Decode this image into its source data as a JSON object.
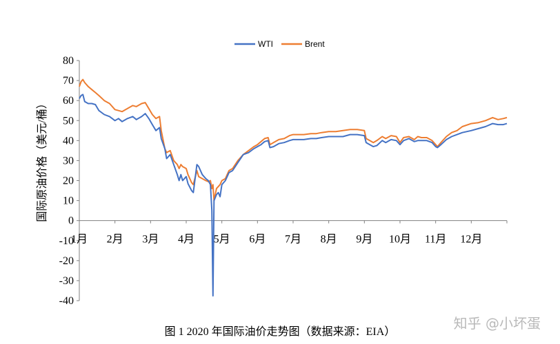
{
  "chart_data": {
    "type": "line",
    "caption": "图 1 2020 年国际油价走势图（数据来源：EIA）",
    "ylabel": "国际原油价格（美元/桶）",
    "xlabel": "",
    "ylim": [
      -40,
      80
    ],
    "yticks": [
      80,
      70,
      60,
      50,
      40,
      30,
      20,
      10,
      0,
      -10,
      -20,
      -30,
      -40
    ],
    "xrange": [
      1,
      13
    ],
    "months": [
      {
        "label": "1月",
        "x": 1
      },
      {
        "label": "2月",
        "x": 2
      },
      {
        "label": "3月",
        "x": 3
      },
      {
        "label": "4月",
        "x": 4
      },
      {
        "label": "5月",
        "x": 5
      },
      {
        "label": "6月",
        "x": 6
      },
      {
        "label": "7月",
        "x": 7
      },
      {
        "label": "8月",
        "x": 8
      },
      {
        "label": "9月",
        "x": 9
      },
      {
        "label": "10月",
        "x": 10
      },
      {
        "label": "11月",
        "x": 11
      },
      {
        "label": "12月",
        "x": 12
      }
    ],
    "legend_position": "top-center",
    "grid": false,
    "series": [
      {
        "name": "WTI",
        "color": "#4472C4",
        "points": [
          [
            1.0,
            61
          ],
          [
            1.05,
            62.5
          ],
          [
            1.1,
            63
          ],
          [
            1.15,
            59.5
          ],
          [
            1.25,
            58.5
          ],
          [
            1.35,
            58.5
          ],
          [
            1.45,
            58
          ],
          [
            1.55,
            55
          ],
          [
            1.7,
            53
          ],
          [
            1.85,
            52
          ],
          [
            2.0,
            50
          ],
          [
            2.1,
            51
          ],
          [
            2.2,
            49.5
          ],
          [
            2.35,
            51
          ],
          [
            2.5,
            52
          ],
          [
            2.6,
            50.5
          ],
          [
            2.75,
            52
          ],
          [
            2.85,
            53.5
          ],
          [
            2.95,
            51
          ],
          [
            3.05,
            48
          ],
          [
            3.15,
            45
          ],
          [
            3.25,
            46.5
          ],
          [
            3.3,
            41
          ],
          [
            3.4,
            36
          ],
          [
            3.45,
            31
          ],
          [
            3.55,
            33
          ],
          [
            3.65,
            28
          ],
          [
            3.75,
            23
          ],
          [
            3.8,
            20
          ],
          [
            3.85,
            23
          ],
          [
            3.9,
            20
          ],
          [
            4.0,
            22
          ],
          [
            4.05,
            18.5
          ],
          [
            4.15,
            15
          ],
          [
            4.2,
            14
          ],
          [
            4.3,
            28
          ],
          [
            4.35,
            27
          ],
          [
            4.45,
            23
          ],
          [
            4.55,
            21
          ],
          [
            4.62,
            20
          ],
          [
            4.68,
            18
          ],
          [
            4.72,
            5
          ],
          [
            4.75,
            -37.6
          ],
          [
            4.78,
            10
          ],
          [
            4.85,
            13
          ],
          [
            4.9,
            14
          ],
          [
            4.95,
            12
          ],
          [
            5.0,
            18
          ],
          [
            5.1,
            20
          ],
          [
            5.2,
            24
          ],
          [
            5.3,
            25
          ],
          [
            5.45,
            29
          ],
          [
            5.6,
            33
          ],
          [
            5.75,
            34
          ],
          [
            5.9,
            36
          ],
          [
            6.0,
            37
          ],
          [
            6.1,
            38
          ],
          [
            6.2,
            39.5
          ],
          [
            6.3,
            40
          ],
          [
            6.35,
            36.5
          ],
          [
            6.45,
            37
          ],
          [
            6.6,
            38.5
          ],
          [
            6.75,
            39
          ],
          [
            6.9,
            40
          ],
          [
            7.0,
            40.5
          ],
          [
            7.15,
            40.5
          ],
          [
            7.3,
            40.5
          ],
          [
            7.5,
            41
          ],
          [
            7.65,
            41
          ],
          [
            7.8,
            41.5
          ],
          [
            8.0,
            42
          ],
          [
            8.2,
            42
          ],
          [
            8.4,
            42
          ],
          [
            8.6,
            43
          ],
          [
            8.8,
            43
          ],
          [
            9.0,
            42.5
          ],
          [
            9.05,
            39
          ],
          [
            9.15,
            38
          ],
          [
            9.25,
            37
          ],
          [
            9.35,
            37.5
          ],
          [
            9.5,
            40
          ],
          [
            9.6,
            39
          ],
          [
            9.75,
            40.5
          ],
          [
            9.9,
            40
          ],
          [
            10.0,
            38
          ],
          [
            10.1,
            40
          ],
          [
            10.25,
            41
          ],
          [
            10.4,
            39.5
          ],
          [
            10.5,
            40
          ],
          [
            10.6,
            40
          ],
          [
            10.75,
            40
          ],
          [
            10.9,
            39
          ],
          [
            11.0,
            37
          ],
          [
            11.05,
            36.5
          ],
          [
            11.15,
            38
          ],
          [
            11.3,
            40.5
          ],
          [
            11.45,
            42
          ],
          [
            11.6,
            43
          ],
          [
            11.75,
            44
          ],
          [
            12.0,
            45
          ],
          [
            12.2,
            46
          ],
          [
            12.4,
            47
          ],
          [
            12.6,
            48.5
          ],
          [
            12.75,
            48
          ],
          [
            12.9,
            48
          ],
          [
            13.0,
            48.5
          ]
        ]
      },
      {
        "name": "Brent",
        "color": "#ED7D31",
        "points": [
          [
            1.0,
            67
          ],
          [
            1.05,
            69.5
          ],
          [
            1.1,
            70.5
          ],
          [
            1.15,
            69
          ],
          [
            1.25,
            67
          ],
          [
            1.35,
            65.5
          ],
          [
            1.45,
            64
          ],
          [
            1.55,
            62.5
          ],
          [
            1.7,
            60
          ],
          [
            1.85,
            58.5
          ],
          [
            2.0,
            55.5
          ],
          [
            2.1,
            55
          ],
          [
            2.2,
            54.5
          ],
          [
            2.35,
            56
          ],
          [
            2.5,
            57.5
          ],
          [
            2.6,
            57
          ],
          [
            2.75,
            58.5
          ],
          [
            2.85,
            59
          ],
          [
            2.95,
            56
          ],
          [
            3.05,
            53
          ],
          [
            3.15,
            51
          ],
          [
            3.25,
            52
          ],
          [
            3.3,
            45
          ],
          [
            3.4,
            36
          ],
          [
            3.45,
            34
          ],
          [
            3.55,
            35
          ],
          [
            3.65,
            30
          ],
          [
            3.75,
            28
          ],
          [
            3.8,
            26
          ],
          [
            3.85,
            28
          ],
          [
            3.9,
            27
          ],
          [
            4.0,
            26
          ],
          [
            4.05,
            23
          ],
          [
            4.15,
            19
          ],
          [
            4.2,
            18
          ],
          [
            4.3,
            25
          ],
          [
            4.35,
            22
          ],
          [
            4.45,
            21
          ],
          [
            4.55,
            20
          ],
          [
            4.62,
            19.5
          ],
          [
            4.68,
            20
          ],
          [
            4.72,
            16
          ],
          [
            4.75,
            18
          ],
          [
            4.78,
            10
          ],
          [
            4.85,
            16
          ],
          [
            4.9,
            17
          ],
          [
            4.95,
            18
          ],
          [
            5.0,
            20
          ],
          [
            5.1,
            21
          ],
          [
            5.2,
            25
          ],
          [
            5.3,
            26
          ],
          [
            5.45,
            30
          ],
          [
            5.6,
            33
          ],
          [
            5.75,
            35
          ],
          [
            5.9,
            37
          ],
          [
            6.0,
            38
          ],
          [
            6.1,
            39.5
          ],
          [
            6.2,
            41
          ],
          [
            6.3,
            41.5
          ],
          [
            6.35,
            38
          ],
          [
            6.45,
            39
          ],
          [
            6.6,
            40.5
          ],
          [
            6.75,
            41
          ],
          [
            6.9,
            42.5
          ],
          [
            7.0,
            43
          ],
          [
            7.15,
            43
          ],
          [
            7.3,
            43
          ],
          [
            7.5,
            43.5
          ],
          [
            7.65,
            43.5
          ],
          [
            7.8,
            44
          ],
          [
            8.0,
            44.5
          ],
          [
            8.2,
            44.5
          ],
          [
            8.4,
            45
          ],
          [
            8.6,
            45.5
          ],
          [
            8.8,
            45.5
          ],
          [
            9.0,
            45
          ],
          [
            9.05,
            41
          ],
          [
            9.15,
            40
          ],
          [
            9.25,
            39
          ],
          [
            9.35,
            40
          ],
          [
            9.5,
            42
          ],
          [
            9.6,
            41
          ],
          [
            9.75,
            42.5
          ],
          [
            9.9,
            42
          ],
          [
            10.0,
            39
          ],
          [
            10.1,
            41.5
          ],
          [
            10.25,
            42
          ],
          [
            10.4,
            40.5
          ],
          [
            10.5,
            42
          ],
          [
            10.6,
            41.5
          ],
          [
            10.75,
            41.5
          ],
          [
            10.9,
            40
          ],
          [
            11.0,
            38
          ],
          [
            11.05,
            37
          ],
          [
            11.15,
            39
          ],
          [
            11.3,
            42
          ],
          [
            11.45,
            44
          ],
          [
            11.6,
            45
          ],
          [
            11.75,
            47
          ],
          [
            12.0,
            48.5
          ],
          [
            12.2,
            49
          ],
          [
            12.4,
            50
          ],
          [
            12.6,
            51.5
          ],
          [
            12.75,
            50.5
          ],
          [
            12.9,
            51
          ],
          [
            13.0,
            51.5
          ]
        ]
      }
    ]
  },
  "watermark": "知乎 @小坏蛋"
}
